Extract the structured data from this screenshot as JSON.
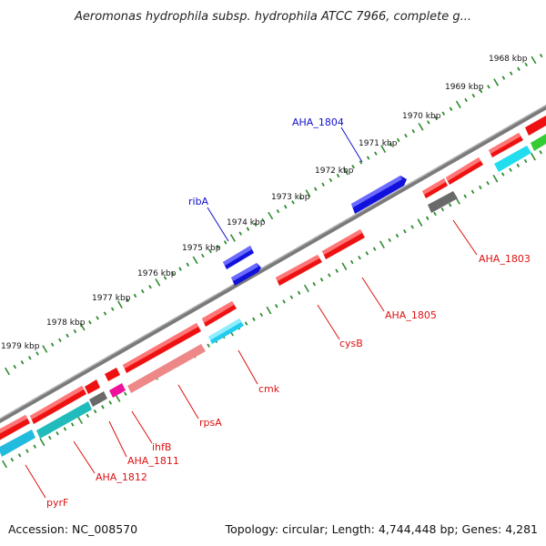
{
  "title": "Aeromonas hydrophila subsp. hydrophila ATCC 7966, complete g...",
  "footer": {
    "accession": "Accession: NC_008570",
    "topology": "Topology: circular; Length: 4,744,448 bp; Genes: 4,281"
  },
  "colors": {
    "backbone": "#7a7a7a",
    "tick": "#2e8b2e",
    "red": "#ee1111",
    "blue": "#1111dd",
    "cyan": "#22ccee",
    "teal": "#22bbbb",
    "gray": "#6a6a6a",
    "pink": "#ee8888",
    "magenta": "#ee1199",
    "green": "#33cc33",
    "label_red": "#dd1111",
    "label_blue": "#1111cc"
  },
  "ticks": [
    {
      "label": "1968 kbp"
    },
    {
      "label": "1969 kbp"
    },
    {
      "label": "1970 kbp"
    },
    {
      "label": "1971 kbp"
    },
    {
      "label": "1972 kbp"
    },
    {
      "label": "1973 kbp"
    },
    {
      "label": "1974 kbp"
    },
    {
      "label": "1975 kbp"
    },
    {
      "label": "1976 kbp"
    },
    {
      "label": "1977 kbp"
    },
    {
      "label": "1978 kbp"
    },
    {
      "label": "1979 kbp"
    }
  ],
  "genes": [
    {
      "name": "AHA_1804",
      "color": "blue"
    },
    {
      "name": "ribA",
      "color": "blue"
    },
    {
      "name": "AHA_1803",
      "color": "red"
    },
    {
      "name": "AHA_1805",
      "color": "red"
    },
    {
      "name": "cysB",
      "color": "red"
    },
    {
      "name": "cmk",
      "color": "red"
    },
    {
      "name": "rpsA",
      "color": "red"
    },
    {
      "name": "ihfB",
      "color": "red"
    },
    {
      "name": "AHA_1811",
      "color": "red"
    },
    {
      "name": "AHA_1812",
      "color": "red"
    },
    {
      "name": "pyrF",
      "color": "red"
    }
  ]
}
